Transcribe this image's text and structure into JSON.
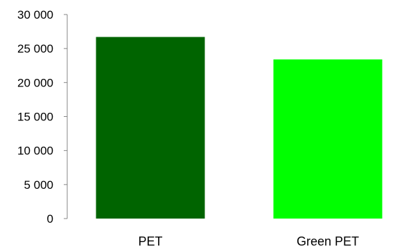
{
  "chart_data": {
    "type": "bar",
    "title": "",
    "xlabel": "",
    "ylabel": "",
    "categories": [
      "PET",
      "Green PET"
    ],
    "values": [
      26700,
      23400
    ],
    "bar_colors": [
      "#006400",
      "#00ff00"
    ],
    "ylim": [
      0,
      30000
    ],
    "yticks": [
      0,
      5000,
      10000,
      15000,
      20000,
      25000,
      30000
    ],
    "ytick_labels": [
      "0",
      "5 000",
      "10 000",
      "15 000",
      "20 000",
      "25 000",
      "30 000"
    ],
    "grid": false,
    "legend": "none"
  }
}
